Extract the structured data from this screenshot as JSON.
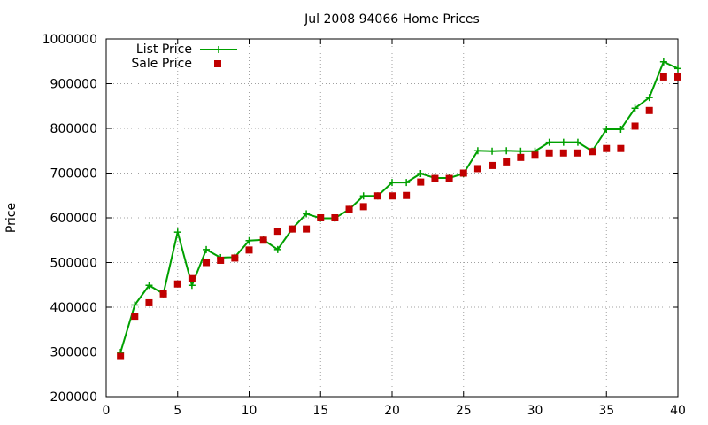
{
  "chart_data": {
    "type": "line",
    "title": "Jul 2008 94066 Home Prices",
    "xlabel": "",
    "ylabel": "Price",
    "xlim": [
      0,
      40
    ],
    "ylim": [
      200000,
      1000000
    ],
    "x_ticks": [
      0,
      5,
      10,
      15,
      20,
      25,
      30,
      35,
      40
    ],
    "y_ticks": [
      200000,
      300000,
      400000,
      500000,
      600000,
      700000,
      800000,
      900000,
      1000000
    ],
    "x_tick_labels": [
      "0",
      "5",
      "10",
      "15",
      "20",
      "25",
      "30",
      "35",
      "40"
    ],
    "y_tick_labels": [
      "200000",
      "300000",
      "400000",
      "500000",
      "600000",
      "700000",
      "800000",
      "900000",
      "1000000"
    ],
    "grid": true,
    "legend_position": "top-left",
    "x": [
      1,
      2,
      3,
      4,
      5,
      6,
      7,
      8,
      9,
      10,
      11,
      12,
      13,
      14,
      15,
      16,
      17,
      18,
      19,
      20,
      21,
      22,
      23,
      24,
      25,
      26,
      27,
      28,
      29,
      30,
      31,
      32,
      33,
      34,
      35,
      36,
      37,
      38,
      39,
      40
    ],
    "series": [
      {
        "name": "List Price",
        "style": "line-plus",
        "color": "#00a000",
        "values": [
          299000,
          405000,
          449000,
          430000,
          568000,
          449000,
          529000,
          511000,
          512000,
          549000,
          551000,
          529000,
          575000,
          609000,
          599000,
          599000,
          619000,
          649000,
          649000,
          679000,
          679000,
          699000,
          689000,
          689000,
          699000,
          750000,
          749000,
          750000,
          749000,
          749000,
          769000,
          769000,
          769000,
          749000,
          798000,
          798000,
          845000,
          869000,
          949000,
          934000
        ]
      },
      {
        "name": "Sale Price",
        "style": "square",
        "color": "#c00000",
        "values": [
          290000,
          380000,
          410000,
          430000,
          452000,
          464000,
          500000,
          505000,
          510000,
          528000,
          550000,
          570000,
          575000,
          575000,
          600000,
          600000,
          619000,
          625000,
          649000,
          649000,
          650000,
          680000,
          688000,
          688000,
          700000,
          710000,
          717000,
          725000,
          735000,
          740000,
          745000,
          745000,
          745000,
          748000,
          755000,
          755000,
          805000,
          840000,
          915000,
          915000
        ]
      }
    ]
  }
}
